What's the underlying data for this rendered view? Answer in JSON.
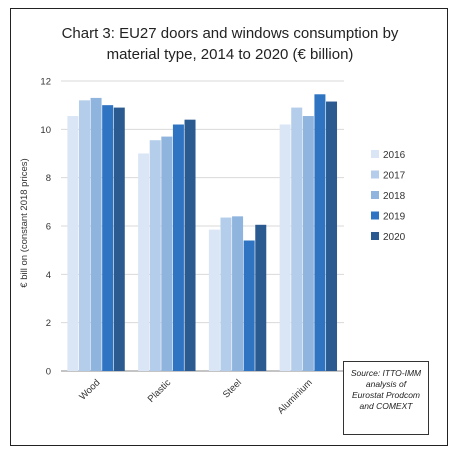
{
  "chart_data": {
    "type": "bar",
    "title_lines": [
      "Chart 3: EU27 doors and windows consumption by",
      "material type, 2014 to 2020 (€ billion)"
    ],
    "ylabel": "€ bill on (constant 2018 prices)",
    "xlabel": "",
    "ylim": [
      0,
      12
    ],
    "yticks": [
      "0",
      "2",
      "4",
      "6",
      "8",
      "10",
      "12"
    ],
    "grid": true,
    "legend_position": "right",
    "categories": [
      "Wood",
      "Plastic",
      "Steel",
      "Aluminium"
    ],
    "series": [
      {
        "name": "2016",
        "color": "#dae6f5",
        "values": [
          10.55,
          9.0,
          5.85,
          10.2
        ]
      },
      {
        "name": "2017",
        "color": "#b4cdea",
        "values": [
          11.2,
          9.55,
          6.35,
          10.9
        ]
      },
      {
        "name": "2018",
        "color": "#8fb4de",
        "values": [
          11.3,
          9.7,
          6.4,
          10.55
        ]
      },
      {
        "name": "2019",
        "color": "#2e74c2",
        "values": [
          11.0,
          10.2,
          5.4,
          11.45
        ]
      },
      {
        "name": "2020",
        "color": "#2a5a8f",
        "values": [
          10.9,
          10.4,
          6.05,
          11.15
        ]
      }
    ],
    "source_lines": [
      "Source: ITTO-IMM",
      "analysis of",
      "Eurostat Prodcom",
      "and COMEXT"
    ]
  }
}
